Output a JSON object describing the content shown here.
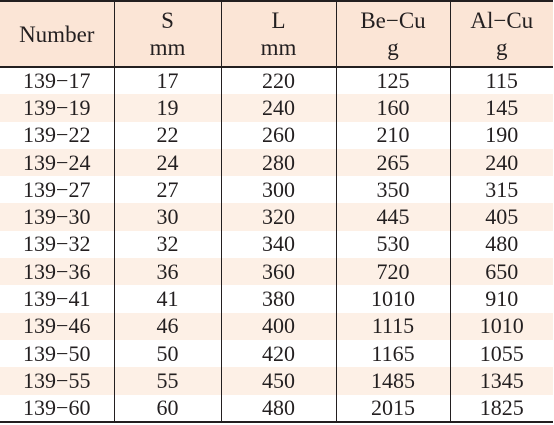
{
  "header": {
    "number": "Number",
    "s": "S",
    "s_unit": "mm",
    "l": "L",
    "l_unit": "mm",
    "becu": "Be−Cu",
    "becu_unit": "g",
    "alcu": "Al−Cu",
    "alcu_unit": "g"
  },
  "rows": [
    [
      "139−17",
      "17",
      "220",
      "125",
      "115"
    ],
    [
      "139−19",
      "19",
      "240",
      "160",
      "145"
    ],
    [
      "139−22",
      "22",
      "260",
      "210",
      "190"
    ],
    [
      "139−24",
      "24",
      "280",
      "265",
      "240"
    ],
    [
      "139−27",
      "27",
      "300",
      "350",
      "315"
    ],
    [
      "139−30",
      "30",
      "320",
      "445",
      "405"
    ],
    [
      "139−32",
      "32",
      "340",
      "530",
      "480"
    ],
    [
      "139−36",
      "36",
      "360",
      "720",
      "650"
    ],
    [
      "139−41",
      "41",
      "380",
      "1010",
      "910"
    ],
    [
      "139−46",
      "46",
      "400",
      "1115",
      "1010"
    ],
    [
      "139−50",
      "50",
      "420",
      "1165",
      "1055"
    ],
    [
      "139−55",
      "55",
      "450",
      "1485",
      "1345"
    ],
    [
      "139−60",
      "60",
      "480",
      "2015",
      "1825"
    ]
  ]
}
